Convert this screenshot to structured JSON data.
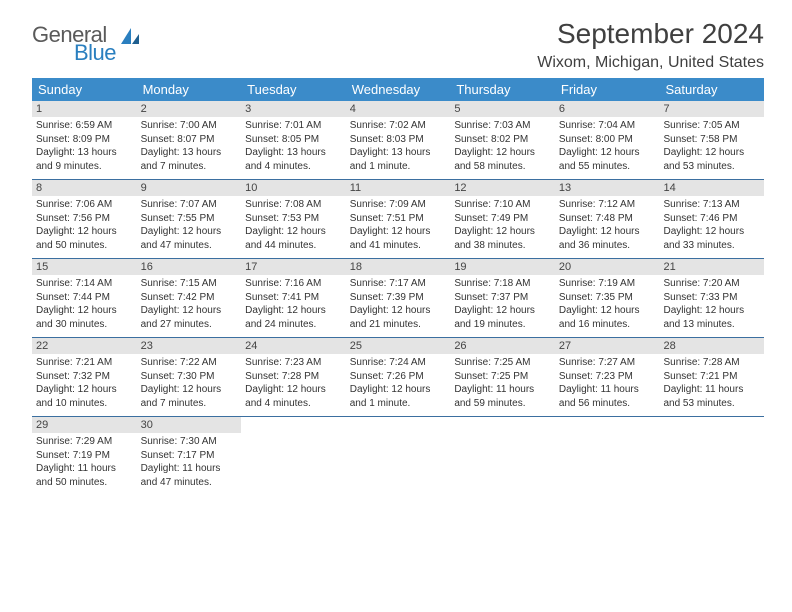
{
  "logo": {
    "general": "General",
    "blue": "Blue"
  },
  "title": "September 2024",
  "location": "Wixom, Michigan, United States",
  "colors": {
    "header_bg": "#3b8bc9",
    "header_text": "#ffffff",
    "daynum_bg": "#e4e4e4",
    "row_border": "#3b6fa0",
    "title_color": "#404040",
    "logo_blue": "#2a7fbf"
  },
  "dayNames": [
    "Sunday",
    "Monday",
    "Tuesday",
    "Wednesday",
    "Thursday",
    "Friday",
    "Saturday"
  ],
  "weeks": [
    [
      {
        "n": "1",
        "sr": "6:59 AM",
        "ss": "8:09 PM",
        "dl": "13 hours and 9 minutes."
      },
      {
        "n": "2",
        "sr": "7:00 AM",
        "ss": "8:07 PM",
        "dl": "13 hours and 7 minutes."
      },
      {
        "n": "3",
        "sr": "7:01 AM",
        "ss": "8:05 PM",
        "dl": "13 hours and 4 minutes."
      },
      {
        "n": "4",
        "sr": "7:02 AM",
        "ss": "8:03 PM",
        "dl": "13 hours and 1 minute."
      },
      {
        "n": "5",
        "sr": "7:03 AM",
        "ss": "8:02 PM",
        "dl": "12 hours and 58 minutes."
      },
      {
        "n": "6",
        "sr": "7:04 AM",
        "ss": "8:00 PM",
        "dl": "12 hours and 55 minutes."
      },
      {
        "n": "7",
        "sr": "7:05 AM",
        "ss": "7:58 PM",
        "dl": "12 hours and 53 minutes."
      }
    ],
    [
      {
        "n": "8",
        "sr": "7:06 AM",
        "ss": "7:56 PM",
        "dl": "12 hours and 50 minutes."
      },
      {
        "n": "9",
        "sr": "7:07 AM",
        "ss": "7:55 PM",
        "dl": "12 hours and 47 minutes."
      },
      {
        "n": "10",
        "sr": "7:08 AM",
        "ss": "7:53 PM",
        "dl": "12 hours and 44 minutes."
      },
      {
        "n": "11",
        "sr": "7:09 AM",
        "ss": "7:51 PM",
        "dl": "12 hours and 41 minutes."
      },
      {
        "n": "12",
        "sr": "7:10 AM",
        "ss": "7:49 PM",
        "dl": "12 hours and 38 minutes."
      },
      {
        "n": "13",
        "sr": "7:12 AM",
        "ss": "7:48 PM",
        "dl": "12 hours and 36 minutes."
      },
      {
        "n": "14",
        "sr": "7:13 AM",
        "ss": "7:46 PM",
        "dl": "12 hours and 33 minutes."
      }
    ],
    [
      {
        "n": "15",
        "sr": "7:14 AM",
        "ss": "7:44 PM",
        "dl": "12 hours and 30 minutes."
      },
      {
        "n": "16",
        "sr": "7:15 AM",
        "ss": "7:42 PM",
        "dl": "12 hours and 27 minutes."
      },
      {
        "n": "17",
        "sr": "7:16 AM",
        "ss": "7:41 PM",
        "dl": "12 hours and 24 minutes."
      },
      {
        "n": "18",
        "sr": "7:17 AM",
        "ss": "7:39 PM",
        "dl": "12 hours and 21 minutes."
      },
      {
        "n": "19",
        "sr": "7:18 AM",
        "ss": "7:37 PM",
        "dl": "12 hours and 19 minutes."
      },
      {
        "n": "20",
        "sr": "7:19 AM",
        "ss": "7:35 PM",
        "dl": "12 hours and 16 minutes."
      },
      {
        "n": "21",
        "sr": "7:20 AM",
        "ss": "7:33 PM",
        "dl": "12 hours and 13 minutes."
      }
    ],
    [
      {
        "n": "22",
        "sr": "7:21 AM",
        "ss": "7:32 PM",
        "dl": "12 hours and 10 minutes."
      },
      {
        "n": "23",
        "sr": "7:22 AM",
        "ss": "7:30 PM",
        "dl": "12 hours and 7 minutes."
      },
      {
        "n": "24",
        "sr": "7:23 AM",
        "ss": "7:28 PM",
        "dl": "12 hours and 4 minutes."
      },
      {
        "n": "25",
        "sr": "7:24 AM",
        "ss": "7:26 PM",
        "dl": "12 hours and 1 minute."
      },
      {
        "n": "26",
        "sr": "7:25 AM",
        "ss": "7:25 PM",
        "dl": "11 hours and 59 minutes."
      },
      {
        "n": "27",
        "sr": "7:27 AM",
        "ss": "7:23 PM",
        "dl": "11 hours and 56 minutes."
      },
      {
        "n": "28",
        "sr": "7:28 AM",
        "ss": "7:21 PM",
        "dl": "11 hours and 53 minutes."
      }
    ],
    [
      {
        "n": "29",
        "sr": "7:29 AM",
        "ss": "7:19 PM",
        "dl": "11 hours and 50 minutes."
      },
      {
        "n": "30",
        "sr": "7:30 AM",
        "ss": "7:17 PM",
        "dl": "11 hours and 47 minutes."
      },
      null,
      null,
      null,
      null,
      null
    ]
  ],
  "labels": {
    "sunrise": "Sunrise:",
    "sunset": "Sunset:",
    "daylight": "Daylight:"
  }
}
